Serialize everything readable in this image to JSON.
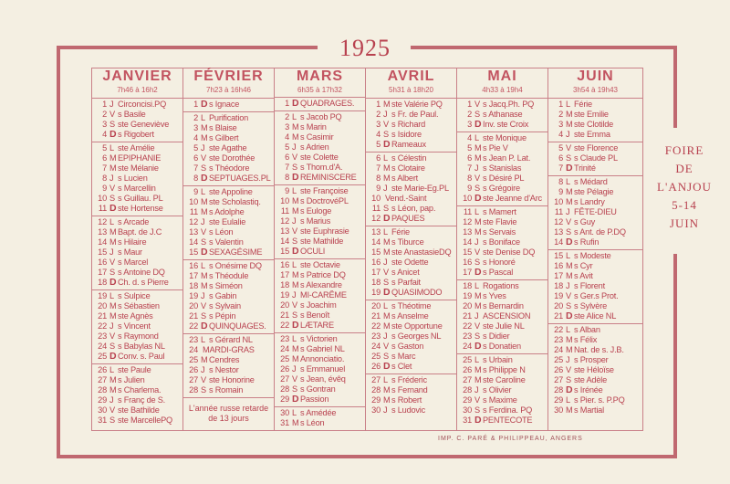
{
  "year": "1925",
  "foire": [
    "FOIRE",
    "DE",
    "L'ANJOU",
    "5-14",
    "JUIN"
  ],
  "imprint": "IMP. C. PARÉ & PHILIPPEAU, ANGERS",
  "colors": {
    "ink": "#b8414f",
    "paper": "#f4efe2",
    "frame": "#c06870"
  },
  "months": [
    {
      "name": "JANVIER",
      "hours": "7h46 à 16h2",
      "weeks": [
        [
          [
            "1",
            "J",
            "Circoncisi.PQ"
          ],
          [
            "2",
            "V",
            "s Basile"
          ],
          [
            "3",
            "S",
            "ste Geneviève"
          ],
          [
            "4",
            "D",
            "s Rigobert"
          ]
        ],
        [
          [
            "5",
            "L",
            "ste Amélie"
          ],
          [
            "6",
            "M",
            "EPIPHANIE"
          ],
          [
            "7",
            "M",
            "ste Mélanie"
          ],
          [
            "8",
            "J",
            "s Lucien"
          ],
          [
            "9",
            "V",
            "s Marcellin"
          ],
          [
            "10",
            "S",
            "s Guillau. PL"
          ],
          [
            "11",
            "D",
            "ste Hortense"
          ]
        ],
        [
          [
            "12",
            "L",
            "s Arcade"
          ],
          [
            "13",
            "M",
            "Bapt. de J.C"
          ],
          [
            "14",
            "M",
            "s Hilaire"
          ],
          [
            "15",
            "J",
            "s Maur"
          ],
          [
            "16",
            "V",
            "s Marcel"
          ],
          [
            "17",
            "S",
            "s Antoine DQ"
          ],
          [
            "18",
            "D",
            "Ch. d. s Pierre"
          ]
        ],
        [
          [
            "19",
            "L",
            "s Sulpice"
          ],
          [
            "20",
            "M",
            "s Sébastien"
          ],
          [
            "21",
            "M",
            "ste Agnès"
          ],
          [
            "22",
            "J",
            "s Vincent"
          ],
          [
            "23",
            "V",
            "s Raymond"
          ],
          [
            "24",
            "S",
            "s Babylas NL"
          ],
          [
            "25",
            "D",
            "Conv. s. Paul"
          ]
        ],
        [
          [
            "26",
            "L",
            "ste Paule"
          ],
          [
            "27",
            "M",
            "s Julien"
          ],
          [
            "28",
            "M",
            "s Charlema."
          ],
          [
            "29",
            "J",
            "s Franç de S."
          ],
          [
            "30",
            "V",
            "ste Bathilde"
          ],
          [
            "31",
            "S",
            "ste MarcellePQ"
          ]
        ]
      ]
    },
    {
      "name": "FÉVRIER",
      "hours": "7h23 à 16h46",
      "note": "L'année russe retarde de 13 jours",
      "weeks": [
        [
          [
            "1",
            "D",
            "s Ignace"
          ]
        ],
        [
          [
            "2",
            "L",
            "Purification"
          ],
          [
            "3",
            "M",
            "s Blaise"
          ],
          [
            "4",
            "M",
            "s Gilbert"
          ],
          [
            "5",
            "J",
            "ste Agathe"
          ],
          [
            "6",
            "V",
            "ste Dorothée"
          ],
          [
            "7",
            "S",
            "s Théodore"
          ],
          [
            "8",
            "D",
            "SEPTUAGES.PL"
          ]
        ],
        [
          [
            "9",
            "L",
            "ste Appoline"
          ],
          [
            "10",
            "M",
            "ste Scholastiq."
          ],
          [
            "11",
            "M",
            "s Adolphe"
          ],
          [
            "12",
            "J",
            "ste Eulalie"
          ],
          [
            "13",
            "V",
            "s Léon"
          ],
          [
            "14",
            "S",
            "s Valentin"
          ],
          [
            "15",
            "D",
            "SEXAGÉSIME"
          ]
        ],
        [
          [
            "16",
            "L",
            "s Onésime DQ"
          ],
          [
            "17",
            "M",
            "s Théodule"
          ],
          [
            "18",
            "M",
            "s Siméon"
          ],
          [
            "19",
            "J",
            "s Gabin"
          ],
          [
            "20",
            "V",
            "s Sylvain"
          ],
          [
            "21",
            "S",
            "s Pépin"
          ],
          [
            "22",
            "D",
            "QUINQUAGES."
          ]
        ],
        [
          [
            "23",
            "L",
            "s Gérard NL"
          ],
          [
            "24",
            "",
            "MARDI-GRAS"
          ],
          [
            "25",
            "M",
            "Cendres"
          ],
          [
            "26",
            "J",
            "s Nestor"
          ],
          [
            "27",
            "V",
            "ste Honorine"
          ],
          [
            "28",
            "S",
            "s Romain"
          ]
        ]
      ]
    },
    {
      "name": "MARS",
      "hours": "6h35 à 17h32",
      "weeks": [
        [
          [
            "1",
            "D",
            "QUADRAGES."
          ]
        ],
        [
          [
            "2",
            "L",
            "s Jacob PQ"
          ],
          [
            "3",
            "M",
            "s Marin"
          ],
          [
            "4",
            "M",
            "s Casimir"
          ],
          [
            "5",
            "J",
            "s Adrien"
          ],
          [
            "6",
            "V",
            "ste Colette"
          ],
          [
            "7",
            "S",
            "s Thom.d'A."
          ],
          [
            "8",
            "D",
            "REMINISCERE"
          ]
        ],
        [
          [
            "9",
            "L",
            "ste Françoise"
          ],
          [
            "10",
            "M",
            "s DoctrovéPL"
          ],
          [
            "11",
            "M",
            "s Euloge"
          ],
          [
            "12",
            "J",
            "s Marius"
          ],
          [
            "13",
            "V",
            "ste Euphrasie"
          ],
          [
            "14",
            "S",
            "ste Mathilde"
          ],
          [
            "15",
            "D",
            "OCULI"
          ]
        ],
        [
          [
            "16",
            "L",
            "ste Octavie"
          ],
          [
            "17",
            "M",
            "s Patrice DQ"
          ],
          [
            "18",
            "M",
            "s Alexandre"
          ],
          [
            "19",
            "J",
            "MI-CARÊME"
          ],
          [
            "20",
            "V",
            "s Joachim"
          ],
          [
            "21",
            "S",
            "s Benoît"
          ],
          [
            "22",
            "D",
            "LÆTARE"
          ]
        ],
        [
          [
            "23",
            "L",
            "s Victorien"
          ],
          [
            "24",
            "M",
            "s Gabriel NL"
          ],
          [
            "25",
            "M",
            "Annonciatio."
          ],
          [
            "26",
            "J",
            "s Emmanuel"
          ],
          [
            "27",
            "V",
            "s Jean, évêq"
          ],
          [
            "28",
            "S",
            "s Gontran"
          ],
          [
            "29",
            "D",
            "Passion"
          ]
        ],
        [
          [
            "30",
            "L",
            "s Amédée"
          ],
          [
            "31",
            "M",
            "s Léon"
          ]
        ]
      ]
    },
    {
      "name": "AVRIL",
      "hours": "5h31 à 18h20",
      "weeks": [
        [
          [
            "1",
            "M",
            "ste Valérie PQ"
          ],
          [
            "2",
            "J",
            "s Fr. de Paul."
          ],
          [
            "3",
            "V",
            "s Richard"
          ],
          [
            "4",
            "S",
            "s Isidore"
          ],
          [
            "5",
            "D",
            "Rameaux"
          ]
        ],
        [
          [
            "6",
            "L",
            "s Célestin"
          ],
          [
            "7",
            "M",
            "s Clotaire"
          ],
          [
            "8",
            "M",
            "s Albert"
          ],
          [
            "9",
            "J",
            "ste Marie-Eg.PL"
          ],
          [
            "10",
            "",
            "Vend.-Saint"
          ],
          [
            "11",
            "S",
            "s Léon, pap."
          ],
          [
            "12",
            "D",
            "PAQUES"
          ]
        ],
        [
          [
            "13",
            "L",
            "Férie"
          ],
          [
            "14",
            "M",
            "s Tiburce"
          ],
          [
            "15",
            "M",
            "ste AnastasieDQ"
          ],
          [
            "16",
            "J",
            "ste Odette"
          ],
          [
            "17",
            "V",
            "s Anicet"
          ],
          [
            "18",
            "S",
            "s Parfait"
          ],
          [
            "19",
            "D",
            "QUASIMODO"
          ]
        ],
        [
          [
            "20",
            "L",
            "s Théotime"
          ],
          [
            "21",
            "M",
            "s Anselme"
          ],
          [
            "22",
            "M",
            "ste Opportune"
          ],
          [
            "23",
            "J",
            "s Georges NL"
          ],
          [
            "24",
            "V",
            "s Gaston"
          ],
          [
            "25",
            "S",
            "s Marc"
          ],
          [
            "26",
            "D",
            "s Clet"
          ]
        ],
        [
          [
            "27",
            "L",
            "s Fréderic"
          ],
          [
            "28",
            "M",
            "s Fernand"
          ],
          [
            "29",
            "M",
            "s Robert"
          ],
          [
            "30",
            "J",
            "s Ludovic"
          ]
        ]
      ]
    },
    {
      "name": "MAI",
      "hours": "4h33 à 19h4",
      "weeks": [
        [
          [
            "1",
            "V",
            "s Jacq.Ph. PQ"
          ],
          [
            "2",
            "S",
            "s Athanase"
          ],
          [
            "3",
            "D",
            "Inv. ste Croix"
          ]
        ],
        [
          [
            "4",
            "L",
            "ste Monique"
          ],
          [
            "5",
            "M",
            "s Pie V"
          ],
          [
            "6",
            "M",
            "s Jean P. Lat."
          ],
          [
            "7",
            "J",
            "s Stanislas"
          ],
          [
            "8",
            "V",
            "s Désiré PL"
          ],
          [
            "9",
            "S",
            "s Grégoire"
          ],
          [
            "10",
            "D",
            "ste Jeanne d'Arc"
          ]
        ],
        [
          [
            "11",
            "L",
            "s Mamert"
          ],
          [
            "12",
            "M",
            "ste Flavie"
          ],
          [
            "13",
            "M",
            "s Servais"
          ],
          [
            "14",
            "J",
            "s Boniface"
          ],
          [
            "15",
            "V",
            "ste Denise DQ"
          ],
          [
            "16",
            "S",
            "s Honoré"
          ],
          [
            "17",
            "D",
            "s Pascal"
          ]
        ],
        [
          [
            "18",
            "L",
            "Rogations"
          ],
          [
            "19",
            "M",
            "s Yves"
          ],
          [
            "20",
            "M",
            "s Bernardin"
          ],
          [
            "21",
            "J",
            "ASCENSION"
          ],
          [
            "22",
            "V",
            "ste Julie NL"
          ],
          [
            "23",
            "S",
            "s Didier"
          ],
          [
            "24",
            "D",
            "s Donatien"
          ]
        ],
        [
          [
            "25",
            "L",
            "s Urbain"
          ],
          [
            "26",
            "M",
            "s Philippe N"
          ],
          [
            "27",
            "M",
            "ste Caroline"
          ],
          [
            "28",
            "J",
            "s Olivier"
          ],
          [
            "29",
            "V",
            "s Maxime"
          ],
          [
            "30",
            "S",
            "s Ferdina. PQ"
          ],
          [
            "31",
            "D",
            "PENTECOTE"
          ]
        ]
      ]
    },
    {
      "name": "JUIN",
      "hours": "3h54 à 19h43",
      "weeks": [
        [
          [
            "1",
            "L",
            "Férie"
          ],
          [
            "2",
            "M",
            "ste Emilie"
          ],
          [
            "3",
            "M",
            "ste Clotilde"
          ],
          [
            "4",
            "J",
            "ste Emma"
          ]
        ],
        [
          [
            "5",
            "V",
            "ste Florence"
          ],
          [
            "6",
            "S",
            "s Claude PL"
          ],
          [
            "7",
            "D",
            "Trinité"
          ]
        ],
        [
          [
            "8",
            "L",
            "s Médard"
          ],
          [
            "9",
            "M",
            "ste Pélagie"
          ],
          [
            "10",
            "M",
            "s Landry"
          ],
          [
            "11",
            "J",
            "FÊTE-DIEU"
          ],
          [
            "12",
            "V",
            "s Guy"
          ],
          [
            "13",
            "S",
            "s Ant. de P.DQ"
          ],
          [
            "14",
            "D",
            "s Rufin"
          ]
        ],
        [
          [
            "15",
            "L",
            "s Modeste"
          ],
          [
            "16",
            "M",
            "s Cyr"
          ],
          [
            "17",
            "M",
            "s Avit"
          ],
          [
            "18",
            "J",
            "s Florent"
          ],
          [
            "19",
            "V",
            "s Ger.s Prot."
          ],
          [
            "20",
            "S",
            "s Sylvère"
          ],
          [
            "21",
            "D",
            "ste Alice NL"
          ]
        ],
        [
          [
            "22",
            "L",
            "s Alban"
          ],
          [
            "23",
            "M",
            "s Félix"
          ],
          [
            "24",
            "M",
            "Nat. de s. J.B."
          ],
          [
            "25",
            "J",
            "s Prosper"
          ],
          [
            "26",
            "V",
            "ste Héloïse"
          ],
          [
            "27",
            "S",
            "ste Adèle"
          ],
          [
            "28",
            "D",
            "s Irénée"
          ],
          [
            "29",
            "L",
            "s Pier. s. P.PQ"
          ],
          [
            "30",
            "M",
            "s Martial"
          ]
        ]
      ]
    }
  ]
}
